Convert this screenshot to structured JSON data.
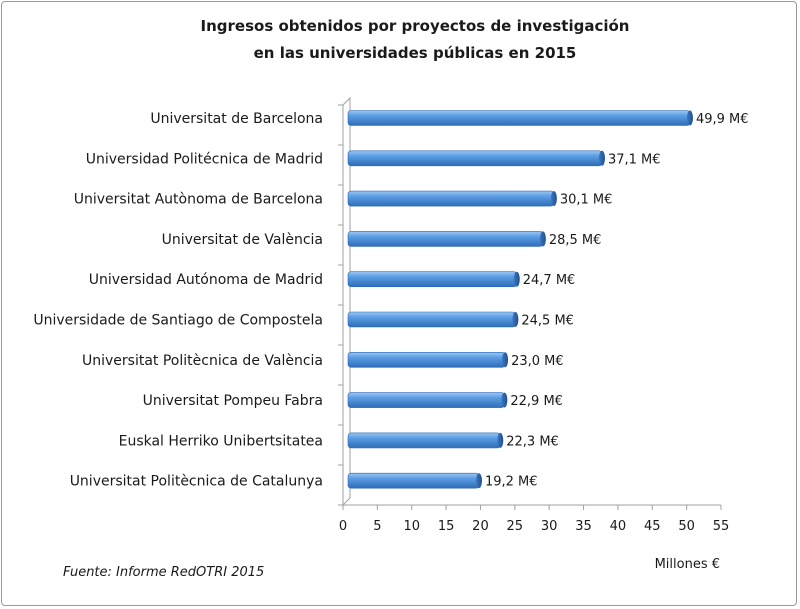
{
  "chart_data": {
    "type": "bar",
    "orientation": "horizontal",
    "title_lines": [
      "Ingresos obtenidos por proyectos de investigación",
      "en las universidades públicas en 2015"
    ],
    "categories": [
      "Universitat de Barcelona",
      "Universidad Politécnica de Madrid",
      "Universitat Autònoma de Barcelona",
      "Universitat de València",
      "Universidad Autónoma de Madrid",
      "Universidade de Santiago de Compostela",
      "Universitat Politècnica de València",
      "Universitat Pompeu Fabra",
      "Euskal Herriko Unibertsitatea",
      "Universitat Politècnica de Catalunya"
    ],
    "values": [
      49.9,
      37.1,
      30.1,
      28.5,
      24.7,
      24.5,
      23.0,
      22.9,
      22.3,
      19.2
    ],
    "data_labels": [
      "49,9 M€",
      "37,1 M€",
      "30,1 M€",
      "28,5 M€",
      "24,7 M€",
      "24,5 M€",
      "23,0 M€",
      "22,9 M€",
      "22,3 M€",
      "19,2 M€"
    ],
    "xlabel": "Millones €",
    "xlim": [
      0,
      55
    ],
    "xticks": [
      "0",
      "5",
      "10",
      "15",
      "20",
      "25",
      "30",
      "35",
      "40",
      "45",
      "50",
      "55"
    ],
    "grid": false,
    "legend": "none",
    "bar_color": "#4a8fd8",
    "style": "3d-cylinder"
  },
  "source": "Fuente: Informe RedOTRI 2015"
}
